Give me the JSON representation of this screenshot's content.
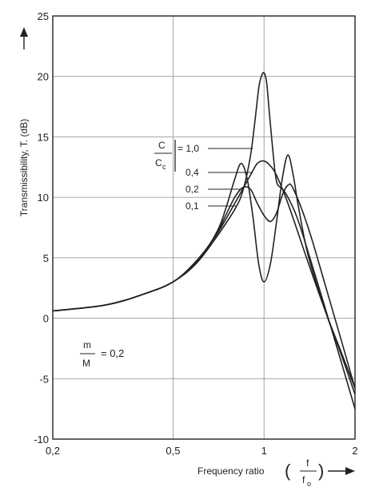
{
  "chart_data": {
    "type": "line",
    "ylabel": "Transmissibility, T. (dB)",
    "xlabel": "Frequency ratio",
    "xlabel_fraction": {
      "num": "f",
      "den": "f",
      "den_sub": "o"
    },
    "x_scale": "log",
    "xlim": [
      0.2,
      2
    ],
    "ylim": [
      -10,
      25
    ],
    "x_ticks": [
      {
        "value": 0.2,
        "label": "0,2"
      },
      {
        "value": 0.5,
        "label": "0,5"
      },
      {
        "value": 1,
        "label": "1"
      },
      {
        "value": 2,
        "label": "2"
      }
    ],
    "y_ticks": [
      {
        "value": -10,
        "label": "-10"
      },
      {
        "value": -5,
        "label": "-5"
      },
      {
        "value": 0,
        "label": "0"
      },
      {
        "value": 5,
        "label": "5"
      },
      {
        "value": 10,
        "label": "10"
      },
      {
        "value": 15,
        "label": "15"
      },
      {
        "value": 20,
        "label": "20"
      },
      {
        "value": 25,
        "label": "25"
      }
    ],
    "grid": true,
    "line_color": "#222222",
    "grid_color": "#9a9a9a",
    "annotation_damping": {
      "num": "C",
      "den": "C",
      "den_sub": "c"
    },
    "annotation_mass": {
      "num": "m",
      "den": "M",
      "value": "= 0,2"
    },
    "series": [
      {
        "name": "= 1,0",
        "x": [
          0.2,
          0.3,
          0.4,
          0.5,
          0.6,
          0.7,
          0.8,
          0.9,
          0.95,
          1.0,
          1.05,
          1.1,
          1.2,
          1.4,
          1.6,
          1.8,
          2.0
        ],
        "y": [
          0.6,
          1.1,
          2.0,
          3.0,
          4.8,
          7.0,
          9.5,
          11.8,
          12.8,
          13.0,
          12.6,
          11.8,
          9.5,
          4.6,
          0.5,
          -2.8,
          -5.8
        ]
      },
      {
        "name": "0,4",
        "x": [
          0.2,
          0.3,
          0.4,
          0.5,
          0.6,
          0.7,
          0.75,
          0.8,
          0.85,
          0.9,
          0.95,
          1.0,
          1.05,
          1.1,
          1.15,
          1.2,
          1.25,
          1.4,
          1.6,
          1.8,
          2.0
        ],
        "y": [
          0.6,
          1.1,
          2.0,
          3.0,
          4.7,
          7.1,
          8.6,
          10.0,
          10.8,
          10.7,
          9.5,
          8.5,
          8.0,
          8.7,
          10.2,
          11.0,
          10.7,
          7.5,
          2.6,
          -1.8,
          -5.8
        ]
      },
      {
        "name": "0,2",
        "x": [
          0.2,
          0.3,
          0.4,
          0.5,
          0.6,
          0.7,
          0.75,
          0.8,
          0.84,
          0.88,
          0.92,
          0.96,
          1.0,
          1.05,
          1.1,
          1.15,
          1.2,
          1.25,
          1.3,
          1.4,
          1.6,
          1.8,
          2.0
        ],
        "y": [
          0.6,
          1.1,
          2.0,
          3.0,
          4.6,
          7.2,
          9.2,
          11.5,
          12.8,
          11.5,
          8.3,
          4.5,
          3.0,
          4.5,
          8.0,
          11.6,
          13.5,
          11.8,
          9.2,
          5.2,
          0.5,
          -3.0,
          -6.3
        ]
      },
      {
        "name": "0,1",
        "x": [
          0.2,
          0.3,
          0.4,
          0.5,
          0.6,
          0.7,
          0.8,
          0.85,
          0.9,
          0.93,
          0.96,
          0.98,
          1.0,
          1.02,
          1.04,
          1.07,
          1.1,
          1.15,
          1.2,
          1.3,
          1.5,
          1.7,
          2.0
        ],
        "y": [
          0.6,
          1.1,
          2.0,
          3.0,
          4.6,
          6.8,
          9.0,
          10.5,
          13.3,
          16.0,
          19.0,
          20.0,
          20.3,
          19.5,
          17.2,
          13.8,
          11.3,
          10.7,
          10.0,
          8.0,
          3.0,
          -1.5,
          -7.5
        ]
      }
    ]
  }
}
